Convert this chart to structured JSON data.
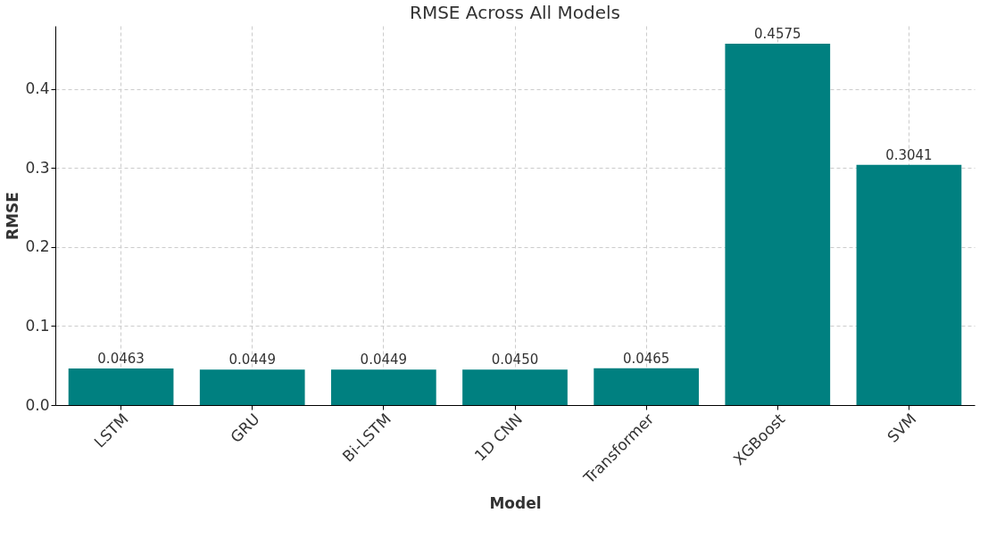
{
  "chart_data": {
    "type": "bar",
    "title": "RMSE Across All Models",
    "xlabel": "Model",
    "ylabel": "RMSE",
    "categories": [
      "LSTM",
      "GRU",
      "Bi-LSTM",
      "1D CNN",
      "Transformer",
      "XGBoost",
      "SVM"
    ],
    "values": [
      0.0463,
      0.0449,
      0.0449,
      0.045,
      0.0465,
      0.4575,
      0.3041
    ],
    "value_labels": [
      "0.0463",
      "0.0449",
      "0.0449",
      "0.0450",
      "0.0465",
      "0.4575",
      "0.3041"
    ],
    "color": "#008080",
    "ylim": [
      0,
      0.48
    ],
    "yticks": [
      {
        "value": 0,
        "label": "0.0"
      },
      {
        "value": 0.1,
        "label": "0.1"
      },
      {
        "value": 0.2,
        "label": "0.2"
      },
      {
        "value": 0.3,
        "label": "0.3"
      },
      {
        "value": 0.4,
        "label": "0.4"
      }
    ],
    "grid": true
  }
}
